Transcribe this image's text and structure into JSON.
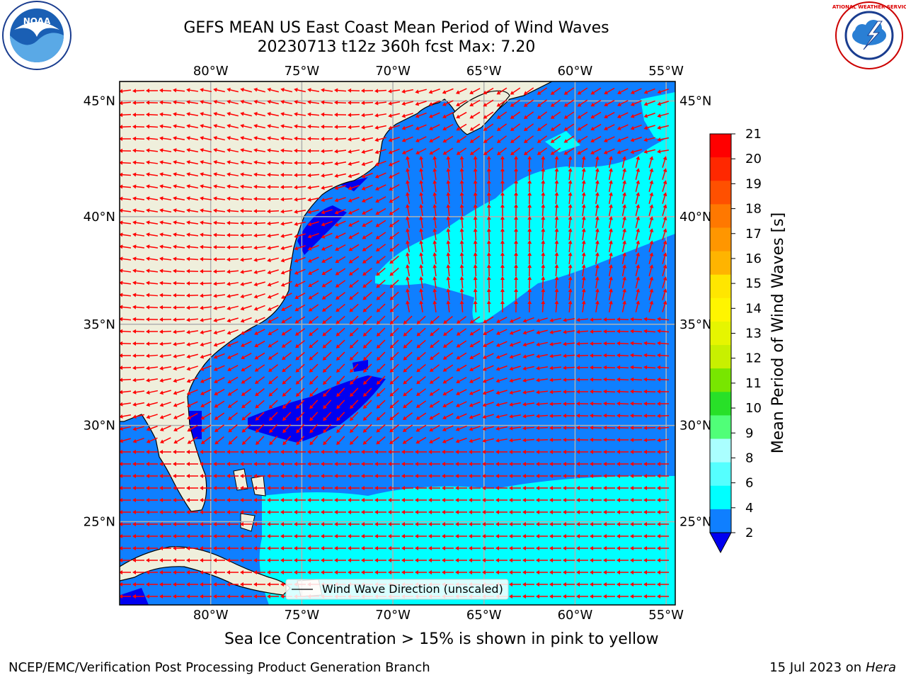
{
  "title": {
    "line1": "GEFS MEAN US East Coast Mean Period of Wind Waves",
    "line2": "20230713 t12z 360h fcst   Max: 7.20"
  },
  "map": {
    "lon_ticks": [
      "80°W",
      "75°W",
      "70°W",
      "65°W",
      "60°W",
      "55°W"
    ],
    "lat_ticks": [
      "45°N",
      "40°N",
      "35°N",
      "30°N",
      "25°N"
    ],
    "lon_range": [
      -85,
      -54.5
    ],
    "lat_range": [
      20.5,
      45.8
    ],
    "colors": {
      "land": "#efefdc",
      "ocean_2_4": "#0f7fff",
      "ocean_lt2": "#0000f0",
      "ocean_4_6": "#00ffff",
      "ocean_6_8": "#55ffff",
      "grid": "#b0b0b0",
      "arrow": "#ff0000"
    },
    "legend_label": "Wind Wave Direction (unscaled)"
  },
  "colorbar": {
    "label": "Mean Period of Wind Waves [s]",
    "ticks": [
      "21",
      "20",
      "19",
      "18",
      "17",
      "16",
      "15",
      "14",
      "13",
      "12",
      "11",
      "10",
      "9",
      "8",
      "6",
      "4",
      "2"
    ],
    "colors": [
      "#ff0000",
      "#ff2800",
      "#ff5000",
      "#ff7800",
      "#ff9600",
      "#ffb400",
      "#ffe600",
      "#fff500",
      "#e6f500",
      "#c8f000",
      "#78e600",
      "#28e028",
      "#50ff78",
      "#aaffff",
      "#55ffff",
      "#00ffff",
      "#0f7fff",
      "#0000f0"
    ]
  },
  "logos": {
    "noaa_text": "NOAA",
    "nws_text": "NATIONAL WEATHER SERVICE"
  },
  "footer": {
    "subnote": "Sea Ice Concentration > 15% is shown in pink to yellow",
    "credit": "NCEP/EMC/Verification Post Processing Product Generation Branch",
    "date_prefix": "15 Jul 2023 on ",
    "machine": "Hera"
  }
}
